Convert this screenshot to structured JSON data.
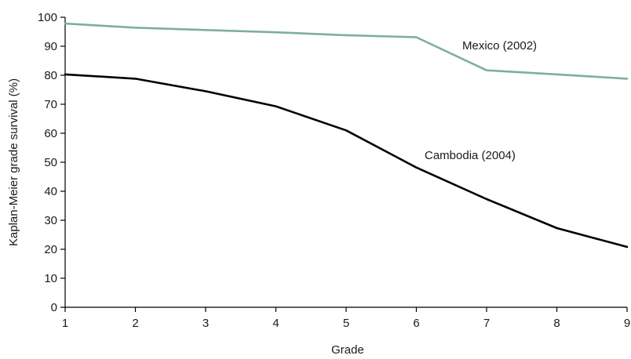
{
  "chart_data": {
    "type": "line",
    "xlabel": "Grade",
    "ylabel": "Kaplan-Meier grade survival (%)",
    "x": [
      1,
      2,
      3,
      4,
      5,
      6,
      7,
      8,
      9
    ],
    "xlim": [
      1,
      9
    ],
    "ylim": [
      0,
      100
    ],
    "xticks": [
      "1",
      "2",
      "3",
      "4",
      "5",
      "6",
      "7",
      "8",
      "9"
    ],
    "yticks": [
      "0",
      "10",
      "20",
      "30",
      "40",
      "50",
      "60",
      "70",
      "80",
      "90",
      "100"
    ],
    "grid": false,
    "legend": "none (series labeled directly on chart)",
    "series": [
      {
        "name": "Mexico (2002)",
        "color": "#7fae9b",
        "values": [
          97.8,
          96.4,
          95.6,
          94.8,
          93.8,
          93.1,
          81.7,
          80.3,
          78.8
        ]
      },
      {
        "name": "Cambodia (2004)",
        "color": "#000000",
        "values": [
          80.3,
          78.8,
          74.5,
          69.3,
          61.0,
          48.2,
          37.3,
          27.3,
          20.8
        ]
      }
    ]
  }
}
